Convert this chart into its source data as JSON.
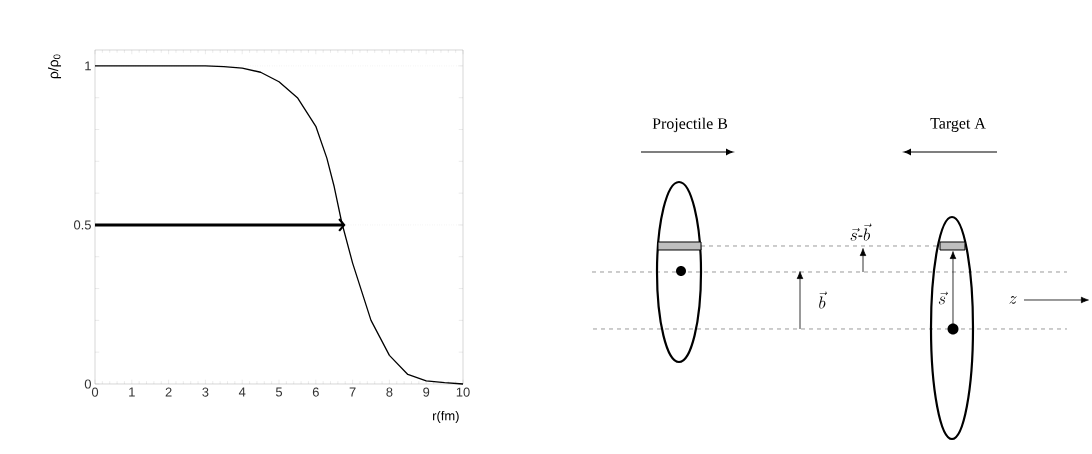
{
  "chart_data": [
    {
      "type": "line",
      "xlabel": "r(fm)",
      "ylabel": "ρ/ρ$_{0}$",
      "xlim": [
        0,
        10
      ],
      "ylim": [
        0,
        1.05
      ],
      "xticks": [
        0,
        1,
        2,
        3,
        4,
        5,
        6,
        7,
        8,
        9,
        10
      ],
      "yticks": [
        0,
        {
          "value": 0.1,
          "label": null
        },
        {
          "value": 0.2,
          "label": null
        },
        {
          "value": 0.3,
          "label": null
        },
        {
          "value": 0.4,
          "label": null
        },
        0.5,
        {
          "value": 0.6,
          "label": null
        },
        {
          "value": 0.7,
          "label": null
        },
        {
          "value": 0.8,
          "label": null
        },
        {
          "value": 0.9,
          "label": null
        },
        1
      ],
      "grid": false,
      "line_style": "solid",
      "ref_lines": [
        {
          "axis": "y",
          "value": 1,
          "color": "#bbbbbb",
          "line_style": "dotted"
        },
        {
          "axis": "y",
          "value": 0.5,
          "color": "#bbbbbb",
          "line_style": "dotted"
        }
      ],
      "series": [
        {
          "color": "#000000",
          "marker": "none",
          "x": [
            0,
            1,
            2,
            3,
            3.5,
            4,
            4.5,
            5,
            5.5,
            6,
            6.3,
            6.5,
            6.7,
            7,
            7.5,
            8,
            8.5,
            9,
            9.5,
            10
          ],
          "values": [
            1,
            1,
            1,
            1,
            0.998,
            0.993,
            0.98,
            0.95,
            0.9,
            0.81,
            0.71,
            0.62,
            0.51,
            0.38,
            0.2,
            0.09,
            0.03,
            0.01,
            0.004,
            0
          ]
        },
        {
          "color": "#000000",
          "x": [
            0,
            6.7
          ],
          "values": [
            0.5,
            0.5
          ]
        }
      ]
    },
    {
      "type": "other",
      "annotations": [
        "Projectile B",
        "Target A",
        "\\vec{s}\\text{-}\\vec{b}",
        "\\vec{b}",
        "\\vec{s}",
        "z"
      ]
    }
  ]
}
